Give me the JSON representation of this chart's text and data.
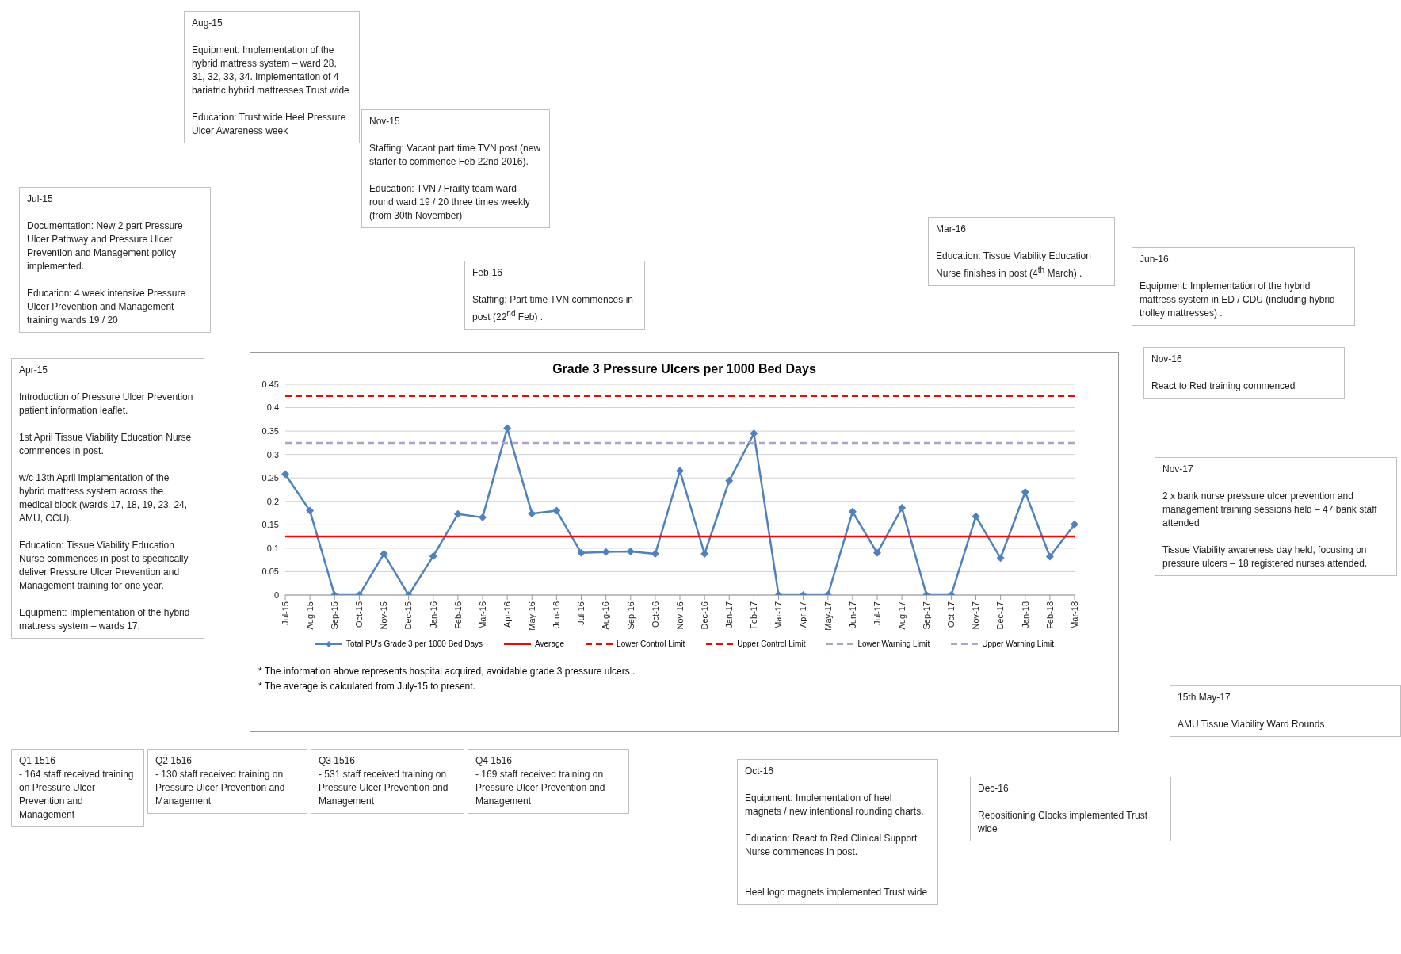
{
  "chart_data": {
    "type": "line",
    "title": "Grade 3 Pressure Ulcers per 1000 Bed Days",
    "categories": [
      "Jul-15",
      "Aug-15",
      "Sep-15",
      "Oct-15",
      "Nov-15",
      "Dec-15",
      "Jan-16",
      "Feb-16",
      "Mar-16",
      "Apr-16",
      "May-16",
      "Jun-16",
      "Jul-16",
      "Aug-16",
      "Sep-16",
      "Oct-16",
      "Nov-16",
      "Dec-16",
      "Jan-17",
      "Feb-17",
      "Mar-17",
      "Apr-17",
      "May-17",
      "Jun-17",
      "Jul-17",
      "Aug-17",
      "Sep-17",
      "Oct-17",
      "Nov-17",
      "Dec-17",
      "Jan-18",
      "Feb-18",
      "Mar-18"
    ],
    "series": [
      {
        "name": "Total PU's Grade 3 per 1000 Bed Days",
        "color": "#4f81bd",
        "marker": "diamond",
        "line_style": "solid",
        "values": [
          0.258,
          0.18,
          0,
          0,
          0.088,
          0,
          0.083,
          0.173,
          0.166,
          0.356,
          0.174,
          0.18,
          0.09,
          0.092,
          0.093,
          0.088,
          0.265,
          0.088,
          0.244,
          0.345,
          0,
          0,
          0,
          0.178,
          0.09,
          0.186,
          0,
          0,
          0.168,
          0.079,
          0.22,
          0.082,
          0.151
        ]
      },
      {
        "name": "Average",
        "color": "#ff0000",
        "marker": "none",
        "line_style": "solid",
        "values": [
          0.125,
          0.125,
          0.125,
          0.125,
          0.125,
          0.125,
          0.125,
          0.125,
          0.125,
          0.125,
          0.125,
          0.125,
          0.125,
          0.125,
          0.125,
          0.125,
          0.125,
          0.125,
          0.125,
          0.125,
          0.125,
          0.125,
          0.125,
          0.125,
          0.125,
          0.125,
          0.125,
          0.125,
          0.125,
          0.125,
          0.125,
          0.125,
          0.125
        ]
      },
      {
        "name": "Lower Control Limit",
        "color": "#ff0000",
        "marker": "none",
        "line_style": "dashed",
        "values": [
          null,
          null,
          null,
          null,
          null,
          null,
          null,
          null,
          null,
          null,
          null,
          null,
          null,
          null,
          null,
          null,
          null,
          null,
          null,
          null,
          null,
          null,
          null,
          null,
          null,
          null,
          null,
          null,
          null,
          null,
          null,
          null,
          null
        ]
      },
      {
        "name": "Upper Control Limit",
        "color": "#ff0000",
        "marker": "none",
        "line_style": "dashed",
        "values": [
          0.425,
          0.425,
          0.425,
          0.425,
          0.425,
          0.425,
          0.425,
          0.425,
          0.425,
          0.425,
          0.425,
          0.425,
          0.425,
          0.425,
          0.425,
          0.425,
          0.425,
          0.425,
          0.425,
          0.425,
          0.425,
          0.425,
          0.425,
          0.425,
          0.425,
          0.425,
          0.425,
          0.425,
          0.425,
          0.425,
          0.425,
          0.425,
          0.425
        ]
      },
      {
        "name": "Lower Warning Limit",
        "color": "#b3a2c7",
        "marker": "none",
        "line_style": "dashed",
        "values": [
          null,
          null,
          null,
          null,
          null,
          null,
          null,
          null,
          null,
          null,
          null,
          null,
          null,
          null,
          null,
          null,
          null,
          null,
          null,
          null,
          null,
          null,
          null,
          null,
          null,
          null,
          null,
          null,
          null,
          null,
          null,
          null,
          null
        ]
      },
      {
        "name": "Upper Warning Limit",
        "color": "#b3a2c7",
        "marker": "none",
        "line_style": "dashed",
        "values": [
          0.325,
          0.325,
          0.325,
          0.325,
          0.325,
          0.325,
          0.325,
          0.325,
          0.325,
          0.325,
          0.325,
          0.325,
          0.325,
          0.325,
          0.325,
          0.325,
          0.325,
          0.325,
          0.325,
          0.325,
          0.325,
          0.325,
          0.325,
          0.325,
          0.325,
          0.325,
          0.325,
          0.325,
          0.325,
          0.325,
          0.325,
          0.325,
          0.325
        ]
      }
    ],
    "ylim": [
      0,
      0.45
    ],
    "yticks": [
      0,
      0.05,
      0.1,
      0.15,
      0.2,
      0.25,
      0.3,
      0.35,
      0.4,
      0.45
    ],
    "grid": "y",
    "legend": "bottom",
    "annotations": [
      "Aug-15\n\nEquipment: Implementation of the hybrid mattress system – ward 28, 31, 32, 33, 34. Implementation of 4 bariatric hybrid mattresses Trust wide\n\nEducation:  Trust wide Heel Pressure Ulcer Awareness week",
      "Nov-15\n\nStaffing:  Vacant part time TVN post  (new starter to commence Feb 22nd 2016).\n\nEducation:  TVN / Frailty team ward round ward 19 / 20 three times weekly (from 30th November)",
      "Jul-15\n\nDocumentation:  New 2 part Pressure Ulcer Pathway and Pressure Ulcer Prevention and Management policy implemented.\n\nEducation:  4 week intensive Pressure Ulcer Prevention and Management training wards 19 / 20",
      "Feb-16\n\nStaffing:  Part time TVN commences in post (22$^{nd}$ Feb) .",
      "Mar-16\n\nEducation:  Tissue Viability Education Nurse finishes in post (4$^{th}$ March) .",
      "Jun-16\n\nEquipment:  Implementation of the hybrid mattress system in ED / CDU (including hybrid trolley mattresses) .",
      "Nov-16\n\nReact to Red training commenced",
      "Apr-15\n\nIntroduction of Pressure Ulcer Prevention patient information leaflet.\n\n1st April Tissue Viability Education Nurse commences in post.\n\nw/c 13th April implamentation of the hybrid mattress system across the medical block (wards 17, 18, 19, 23, 24, AMU, CCU).\n\nEducation:  Tissue Viability Education Nurse commences in post to specifically deliver Pressure Ulcer Prevention and Management training for one year.\n\nEquipment:  Implementation of the hybrid mattress system – wards 17,",
      "Nov-17\n\n2 x bank nurse pressure ulcer prevention and management training sessions held – 47 bank staff attended\n\nTissue Viability awareness day held, focusing on pressure ulcers – 18 registered nurses attended.",
      "15th May-17\n\nAMU Tissue Viability Ward Rounds",
      "Q1 1516\n- 164 staff received training on Pressure Ulcer Prevention and Management",
      "Q2 1516\n-  130 staff received training on Pressure Ulcer Prevention and Management",
      "Q3 1516\n-  531 staff received training on Pressure Ulcer Prevention and Management",
      "Q4 1516\n-  169  staff received training on Pressure Ulcer Prevention and Management",
      "Oct-16\n\nEquipment:  Implementation of heel magnets / new intentional rounding charts.\n\nEducation:  React to Red Clinical Support Nurse commences in post.\n\n\nHeel logo magnets implemented Trust wide",
      "Dec-16\n\nRepositioning Clocks implemented Trust wide",
      "* The information above represents hospital acquired, avoidable grade 3 pressure ulcers .",
      "* The average is calculated from July-15 to present."
    ]
  }
}
